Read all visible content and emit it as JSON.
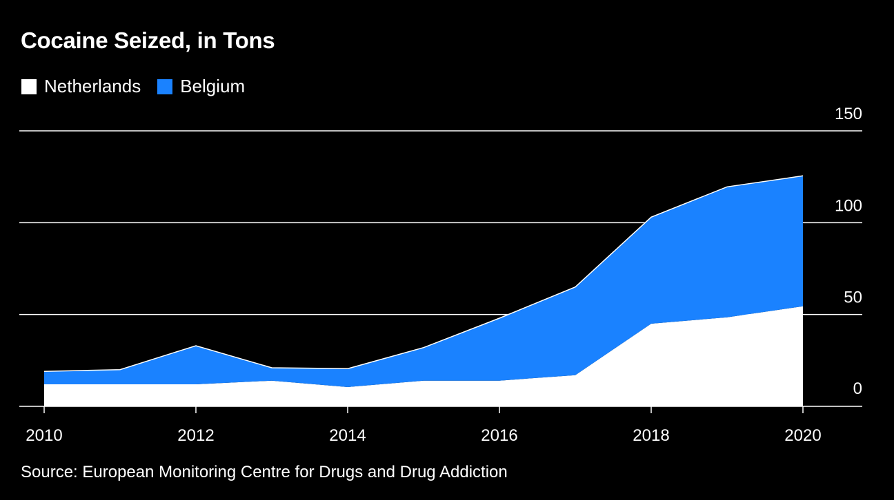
{
  "title": "Cocaine Seized, in Tons",
  "source": "Source: European Monitoring Centre for Drugs and Drug Addiction",
  "colors": {
    "background": "#000000",
    "netherlands": "#ffffff",
    "belgium": "#1a82ff",
    "text": "#ffffff"
  },
  "legend": [
    {
      "label": "Netherlands",
      "color": "#ffffff"
    },
    {
      "label": "Belgium",
      "color": "#1a82ff"
    }
  ],
  "chart_data": {
    "type": "area",
    "stacked": true,
    "title": "Cocaine Seized, in Tons",
    "x": [
      2010,
      2011,
      2012,
      2013,
      2014,
      2015,
      2016,
      2017,
      2018,
      2019,
      2020
    ],
    "x_tick_labels": [
      "2010",
      "2012",
      "2014",
      "2016",
      "2018",
      "2020"
    ],
    "y_tick_labels": [
      "0",
      "50",
      "100",
      "150"
    ],
    "ylim": [
      0,
      150
    ],
    "y_axis_side": "right",
    "grid": true,
    "legend_position": "top-left",
    "series": [
      {
        "name": "Netherlands",
        "values": [
          12,
          12,
          12,
          14,
          10.5,
          14,
          14,
          17,
          45,
          48.5,
          54.5
        ]
      },
      {
        "name": "Belgium",
        "values": [
          7,
          8,
          21,
          7,
          10,
          18,
          34,
          48,
          58,
          71,
          71
        ]
      }
    ]
  }
}
